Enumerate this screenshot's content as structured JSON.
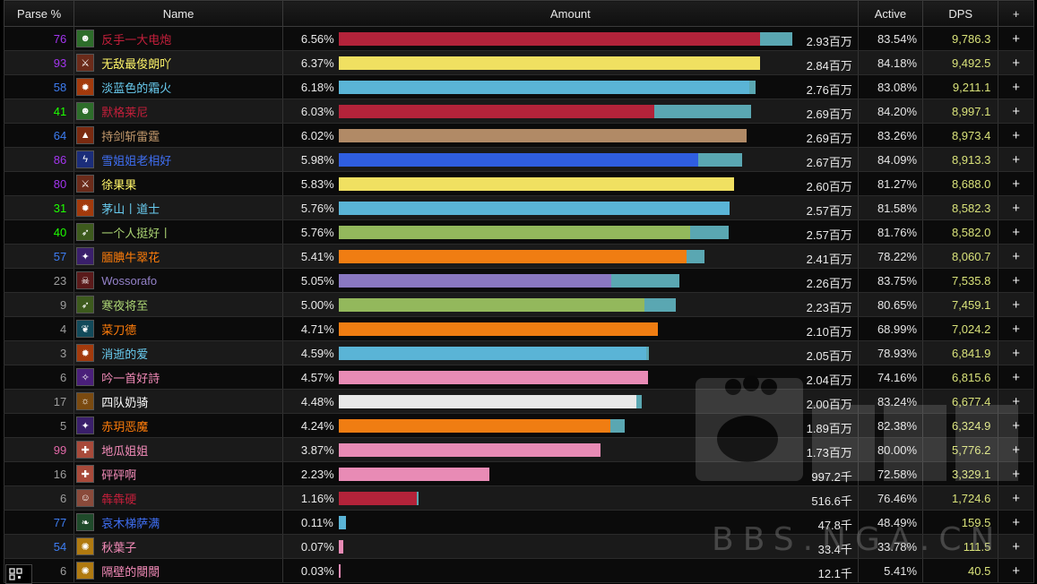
{
  "header": {
    "parse": "Parse %",
    "name": "Name",
    "amount": "Amount",
    "active": "Active",
    "dps": "DPS",
    "plus": "+"
  },
  "rows": [
    {
      "parse": "76",
      "parse_color": "#a335ee",
      "name": "反手一大电炮",
      "name_color": "#c41f3b",
      "icon": "orc-icon",
      "icon_bg": "#2d6d2a",
      "pct": "6.56%",
      "bar": 0.928,
      "ext": 0.072,
      "bar_color": "#b3233a",
      "amount": "2.93百万",
      "active": "83.54%",
      "dps": "9,786.3"
    },
    {
      "parse": "93",
      "parse_color": "#a335ee",
      "name": "无敌最俊朗吖",
      "name_color": "#fff569",
      "icon": "rogue-icon",
      "icon_bg": "#6b2b1a",
      "pct": "6.37%",
      "bar": 0.928,
      "ext": 0.0,
      "bar_color": "#f0e061",
      "amount": "2.84百万",
      "active": "84.18%",
      "dps": "9,492.5"
    },
    {
      "parse": "58",
      "parse_color": "#3d7df2",
      "name": "淡蓝色的霜火",
      "name_color": "#69ccf0",
      "icon": "fire-icon",
      "icon_bg": "#a33a0c",
      "pct": "6.18%",
      "bar": 0.905,
      "ext": 0.013,
      "bar_color": "#5ab4d6",
      "amount": "2.76百万",
      "active": "83.08%",
      "dps": "9,211.1"
    },
    {
      "parse": "41",
      "parse_color": "#1eff00",
      "name": "默格莱尼",
      "name_color": "#c41f3b",
      "icon": "orc-icon",
      "icon_bg": "#2d6d2a",
      "pct": "6.03%",
      "bar": 0.695,
      "ext": 0.214,
      "bar_color": "#b3233a",
      "amount": "2.69百万",
      "active": "84.20%",
      "dps": "8,997.1"
    },
    {
      "parse": "64",
      "parse_color": "#3d7df2",
      "name": "持剑斩雷霆",
      "name_color": "#c79c6e",
      "icon": "warrior-icon",
      "icon_bg": "#7a2a10",
      "pct": "6.02%",
      "bar": 0.899,
      "ext": 0.0,
      "bar_color": "#b18a66",
      "amount": "2.69百万",
      "active": "83.26%",
      "dps": "8,973.4"
    },
    {
      "parse": "86",
      "parse_color": "#a335ee",
      "name": "雪姐姐老相好",
      "name_color": "#3f6ff4",
      "icon": "lightning-icon",
      "icon_bg": "#1b2d7a",
      "pct": "5.98%",
      "bar": 0.793,
      "ext": 0.097,
      "bar_color": "#2f5ee0",
      "amount": "2.67百万",
      "active": "84.09%",
      "dps": "8,913.3"
    },
    {
      "parse": "80",
      "parse_color": "#a335ee",
      "name": "徐果果",
      "name_color": "#fff569",
      "icon": "rogue-icon",
      "icon_bg": "#6b2b1a",
      "pct": "5.83%",
      "bar": 0.872,
      "ext": 0.0,
      "bar_color": "#f0e061",
      "amount": "2.60百万",
      "active": "81.27%",
      "dps": "8,688.0"
    },
    {
      "parse": "31",
      "parse_color": "#1eff00",
      "name": "茅山丨道士",
      "name_color": "#69ccf0",
      "icon": "fire-icon",
      "icon_bg": "#a33a0c",
      "pct": "5.76%",
      "bar": 0.861,
      "ext": 0.0,
      "bar_color": "#5ab4d6",
      "amount": "2.57百万",
      "active": "81.58%",
      "dps": "8,582.3"
    },
    {
      "parse": "40",
      "parse_color": "#1eff00",
      "name": "一个人挺好丨",
      "name_color": "#abd473",
      "icon": "hunter-icon",
      "icon_bg": "#3d5a1d",
      "pct": "5.76%",
      "bar": 0.775,
      "ext": 0.085,
      "bar_color": "#93b85c",
      "amount": "2.57百万",
      "active": "81.76%",
      "dps": "8,582.0"
    },
    {
      "parse": "57",
      "parse_color": "#3d7df2",
      "name": "腼腆牛翠花",
      "name_color": "#ff7d0a",
      "icon": "star-icon",
      "icon_bg": "#3a1f6b",
      "pct": "5.41%",
      "bar": 0.767,
      "ext": 0.04,
      "bar_color": "#f07d12",
      "amount": "2.41百万",
      "active": "78.22%",
      "dps": "8,060.7"
    },
    {
      "parse": "23",
      "parse_color": "#9d9d9d",
      "name": "Wossorafo",
      "name_color": "#9482c9",
      "icon": "skull-icon",
      "icon_bg": "#5a1a1a",
      "pct": "5.05%",
      "bar": 0.6,
      "ext": 0.151,
      "bar_color": "#8a78c2",
      "amount": "2.26百万",
      "active": "83.75%",
      "dps": "7,535.8"
    },
    {
      "parse": "9",
      "parse_color": "#9d9d9d",
      "name": "寒夜将至",
      "name_color": "#abd473",
      "icon": "hunter-icon",
      "icon_bg": "#3d5a1d",
      "pct": "5.00%",
      "bar": 0.674,
      "ext": 0.07,
      "bar_color": "#93b85c",
      "amount": "2.23百万",
      "active": "80.65%",
      "dps": "7,459.1"
    },
    {
      "parse": "4",
      "parse_color": "#9d9d9d",
      "name": "菜刀德",
      "name_color": "#ff7d0a",
      "icon": "claw-icon",
      "icon_bg": "#124a5a",
      "pct": "4.71%",
      "bar": 0.703,
      "ext": 0.0,
      "bar_color": "#f07d12",
      "amount": "2.10百万",
      "active": "68.99%",
      "dps": "7,024.2"
    },
    {
      "parse": "3",
      "parse_color": "#9d9d9d",
      "name": "消逝的爱",
      "name_color": "#69ccf0",
      "icon": "fire-icon",
      "icon_bg": "#a33a0c",
      "pct": "4.59%",
      "bar": 0.678,
      "ext": 0.006,
      "bar_color": "#5ab4d6",
      "amount": "2.05百万",
      "active": "78.93%",
      "dps": "6,841.9"
    },
    {
      "parse": "6",
      "parse_color": "#9d9d9d",
      "name": "吟一首好詩",
      "name_color": "#f58cba",
      "icon": "spark-icon",
      "icon_bg": "#4a1f7a",
      "pct": "4.57%",
      "bar": 0.682,
      "ext": 0.0,
      "bar_color": "#e88bb5",
      "amount": "2.04百万",
      "active": "74.16%",
      "dps": "6,815.6"
    },
    {
      "parse": "17",
      "parse_color": "#9d9d9d",
      "name": "四队奶骑",
      "name_color": "#ffffff",
      "icon": "sun-icon",
      "icon_bg": "#7a4a10",
      "pct": "4.48%",
      "bar": 0.657,
      "ext": 0.012,
      "bar_color": "#e8e8e8",
      "amount": "2.00百万",
      "active": "83.24%",
      "dps": "6,677.4"
    },
    {
      "parse": "5",
      "parse_color": "#9d9d9d",
      "name": "赤玥恶魔",
      "name_color": "#ff7d0a",
      "icon": "star-icon",
      "icon_bg": "#3a1f6b",
      "pct": "4.24%",
      "bar": 0.598,
      "ext": 0.032,
      "bar_color": "#f07d12",
      "amount": "1.89百万",
      "active": "82.38%",
      "dps": "6,324.9"
    },
    {
      "parse": "99",
      "parse_color": "#e268a8",
      "name": "地瓜姐姐",
      "name_color": "#f58cba",
      "icon": "paladin-icon",
      "icon_bg": "#a84a3a",
      "pct": "3.87%",
      "bar": 0.577,
      "ext": 0.0,
      "bar_color": "#e88bb5",
      "amount": "1.73百万",
      "active": "80.00%",
      "dps": "5,776.2"
    },
    {
      "parse": "16",
      "parse_color": "#9d9d9d",
      "name": "砰砰啊",
      "name_color": "#f58cba",
      "icon": "paladin-icon",
      "icon_bg": "#a84a3a",
      "pct": "2.23%",
      "bar": 0.333,
      "ext": 0.0,
      "bar_color": "#e88bb5",
      "amount": "997.2千",
      "active": "72.58%",
      "dps": "3,329.1"
    },
    {
      "parse": "6",
      "parse_color": "#9d9d9d",
      "name": "犇犇硬",
      "name_color": "#c41f3b",
      "icon": "face-icon",
      "icon_bg": "#8a4a3a",
      "pct": "1.16%",
      "bar": 0.171,
      "ext": 0.004,
      "bar_color": "#b3233a",
      "amount": "516.6千",
      "active": "76.46%",
      "dps": "1,724.6"
    },
    {
      "parse": "77",
      "parse_color": "#3d7df2",
      "name": "哀木梯萨满",
      "name_color": "#3f6ff4",
      "icon": "nature-icon",
      "icon_bg": "#1f4a2a",
      "pct": "0.11%",
      "bar": 0.016,
      "ext": 0.0,
      "bar_color": "#5ab4d6",
      "amount": "47.8千",
      "active": "48.49%",
      "dps": "159.5"
    },
    {
      "parse": "54",
      "parse_color": "#3d7df2",
      "name": "秋葉子",
      "name_color": "#f58cba",
      "icon": "burst-icon",
      "icon_bg": "#b07a10",
      "pct": "0.07%",
      "bar": 0.01,
      "ext": 0.0,
      "bar_color": "#e88bb5",
      "amount": "33.4千",
      "active": "33.78%",
      "dps": "111.5"
    },
    {
      "parse": "6",
      "parse_color": "#9d9d9d",
      "name": "隔壁的閿閿",
      "name_color": "#f58cba",
      "icon": "burst-icon",
      "icon_bg": "#b07a10",
      "pct": "0.03%",
      "bar": 0.004,
      "ext": 0.0,
      "bar_color": "#e88bb5",
      "amount": "12.1千",
      "active": "5.41%",
      "dps": "40.5"
    }
  ],
  "icon_glyphs": {
    "orc-icon": "☻",
    "rogue-icon": "⚔",
    "fire-icon": "✹",
    "warrior-icon": "▲",
    "lightning-icon": "ϟ",
    "hunter-icon": "➶",
    "star-icon": "✦",
    "skull-icon": "☠",
    "claw-icon": "❦",
    "spark-icon": "✧",
    "sun-icon": "☼",
    "paladin-icon": "✚",
    "face-icon": "☺",
    "nature-icon": "❧",
    "burst-icon": "✺"
  },
  "watermark": "BBS.NGA.CN"
}
